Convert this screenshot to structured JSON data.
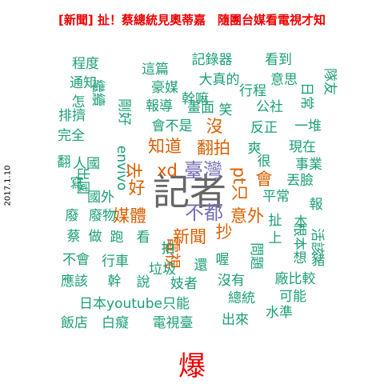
{
  "title": "[新聞] 扯！蔡總統見奧蒂嘉　隨團台媒看電視才知",
  "date_label": "2017.1.10",
  "bottom_word": "爆",
  "colors": {
    "title": "#ee0000",
    "freq_high": "#666666",
    "freq_mid": "#7570b3",
    "freq_low": "#d95f02",
    "freq_rare": "#1b9e77",
    "bottom": "#ee0000"
  },
  "chart_data": {
    "type": "wordcloud",
    "title": "[新聞] 扯！蔡總統見奧蒂嘉　隨團台媒看電視才知",
    "words": [
      {
        "text": "記者",
        "weight": 10,
        "tier": "high",
        "rot": 0
      },
      {
        "text": "臺灣",
        "weight": 5,
        "tier": "mid",
        "rot": 0
      },
      {
        "text": "不都",
        "weight": 5,
        "tier": "mid",
        "rot": 0
      },
      {
        "text": "翻拍",
        "weight": 4,
        "tier": "low",
        "rot": 0
      },
      {
        "text": "知道",
        "weight": 4,
        "tier": "low",
        "rot": 0
      },
      {
        "text": "新聞",
        "weight": 4,
        "tier": "low",
        "rot": 0
      },
      {
        "text": "媒體",
        "weight": 4,
        "tier": "low",
        "rot": 0
      },
      {
        "text": "意外",
        "weight": 4,
        "tier": "low",
        "rot": 0
      },
      {
        "text": "xd",
        "weight": 4,
        "tier": "low",
        "rot": 0
      },
      {
        "text": "沒",
        "weight": 4,
        "tier": "low",
        "rot": 0
      },
      {
        "text": "好",
        "weight": 4,
        "tier": "low",
        "rot": 0
      },
      {
        "text": "抄",
        "weight": 4,
        "tier": "low",
        "rot": 0
      },
      {
        "text": "去",
        "weight": 4,
        "tier": "low",
        "rot": 90
      },
      {
        "text": "會",
        "weight": 4,
        "tier": "low",
        "rot": 0
      },
      {
        "text": "pt只",
        "weight": 4,
        "tier": "low",
        "rot": 90
      },
      {
        "text": "電視",
        "weight": 3,
        "tier": "low",
        "rot": 90
      },
      {
        "text": "程度",
        "weight": 2,
        "tier": "rare",
        "rot": 0
      },
      {
        "text": "這篇",
        "weight": 2,
        "tier": "rare",
        "rot": 0
      },
      {
        "text": "記錄器",
        "weight": 2,
        "tier": "rare",
        "rot": 0
      },
      {
        "text": "看到",
        "weight": 2,
        "tier": "rare",
        "rot": 0
      },
      {
        "text": "通知",
        "weight": 2,
        "tier": "rare",
        "rot": 0
      },
      {
        "text": "豪媒",
        "weight": 2,
        "tier": "rare",
        "rot": 0
      },
      {
        "text": "大真的",
        "weight": 2,
        "tier": "rare",
        "rot": 0
      },
      {
        "text": "意思",
        "weight": 2,
        "tier": "rare",
        "rot": 0
      },
      {
        "text": "繼續",
        "weight": 2,
        "tier": "rare",
        "rot": 90
      },
      {
        "text": "隊友",
        "weight": 2,
        "tier": "rare",
        "rot": 90
      },
      {
        "text": "幹嘛",
        "weight": 2,
        "tier": "rare",
        "rot": 0
      },
      {
        "text": "行程",
        "weight": 2,
        "tier": "rare",
        "rot": 0
      },
      {
        "text": "日常",
        "weight": 2,
        "tier": "rare",
        "rot": 90
      },
      {
        "text": "怎",
        "weight": 2,
        "tier": "rare",
        "rot": 0
      },
      {
        "text": "報導",
        "weight": 2,
        "tier": "rare",
        "rot": 0
      },
      {
        "text": "畫面",
        "weight": 2,
        "tier": "rare",
        "rot": 0
      },
      {
        "text": "笑",
        "weight": 2,
        "tier": "rare",
        "rot": 0
      },
      {
        "text": "公社",
        "weight": 2,
        "tier": "rare",
        "rot": 0
      },
      {
        "text": "排擠",
        "weight": 2,
        "tier": "rare",
        "rot": 0
      },
      {
        "text": "剛好",
        "weight": 2,
        "tier": "rare",
        "rot": 90
      },
      {
        "text": "會不是",
        "weight": 2,
        "tier": "rare",
        "rot": 0
      },
      {
        "text": "反正",
        "weight": 2,
        "tier": "rare",
        "rot": 0
      },
      {
        "text": "一堆",
        "weight": 2,
        "tier": "rare",
        "rot": 0
      },
      {
        "text": "完全",
        "weight": 2,
        "tier": "rare",
        "rot": 0
      },
      {
        "text": "爽",
        "weight": 2,
        "tier": "rare",
        "rot": 0
      },
      {
        "text": "翻",
        "weight": 2,
        "tier": "rare",
        "rot": 0
      },
      {
        "text": "人國",
        "weight": 2,
        "tier": "rare",
        "rot": 0
      },
      {
        "text": "envivo",
        "weight": 2,
        "tier": "rare",
        "rot": 90
      },
      {
        "text": "很",
        "weight": 2,
        "tier": "rare",
        "rot": 0
      },
      {
        "text": "現在",
        "weight": 2,
        "tier": "rare",
        "rot": 0
      },
      {
        "text": "事業",
        "weight": 2,
        "tier": "rare",
        "rot": 0
      },
      {
        "text": "出國",
        "weight": 2,
        "tier": "rare",
        "rot": 90
      },
      {
        "text": "丟臉",
        "weight": 2,
        "tier": "rare",
        "rot": 0
      },
      {
        "text": "寫",
        "weight": 2,
        "tier": "rare",
        "rot": 0
      },
      {
        "text": "平常",
        "weight": 2,
        "tier": "rare",
        "rot": 0
      },
      {
        "text": "國外",
        "weight": 2,
        "tier": "rare",
        "rot": 0
      },
      {
        "text": "報",
        "weight": 2,
        "tier": "rare",
        "rot": 0
      },
      {
        "text": "廢",
        "weight": 2,
        "tier": "rare",
        "rot": 0
      },
      {
        "text": "廢物",
        "weight": 2,
        "tier": "rare",
        "rot": 0
      },
      {
        "text": "扯",
        "weight": 2,
        "tier": "rare",
        "rot": 0
      },
      {
        "text": "本",
        "weight": 2,
        "tier": "rare",
        "rot": 0
      },
      {
        "text": "蔡",
        "weight": 2,
        "tier": "rare",
        "rot": 0
      },
      {
        "text": "做",
        "weight": 2,
        "tier": "rare",
        "rot": 0
      },
      {
        "text": "跑",
        "weight": 2,
        "tier": "rare",
        "rot": 0
      },
      {
        "text": "看",
        "weight": 2,
        "tier": "rare",
        "rot": 0
      },
      {
        "text": "上",
        "weight": 2,
        "tier": "rare",
        "rot": 0
      },
      {
        "text": "根本",
        "weight": 2,
        "tier": "rare",
        "rot": 90
      },
      {
        "text": "活該",
        "weight": 2,
        "tier": "rare",
        "rot": 90
      },
      {
        "text": "拍",
        "weight": 2,
        "tier": "rare",
        "rot": 0
      },
      {
        "text": "問題",
        "weight": 2,
        "tier": "rare",
        "rot": 90
      },
      {
        "text": "想",
        "weight": 2,
        "tier": "rare",
        "rot": 0
      },
      {
        "text": "豬",
        "weight": 2,
        "tier": "rare",
        "rot": 0
      },
      {
        "text": "不會",
        "weight": 2,
        "tier": "rare",
        "rot": 0
      },
      {
        "text": "行車",
        "weight": 2,
        "tier": "rare",
        "rot": 0
      },
      {
        "text": "垃圾",
        "weight": 2,
        "tier": "rare",
        "rot": 0
      },
      {
        "text": "還",
        "weight": 2,
        "tier": "rare",
        "rot": 0
      },
      {
        "text": "喔",
        "weight": 2,
        "tier": "rare",
        "rot": 0
      },
      {
        "text": "應該",
        "weight": 2,
        "tier": "rare",
        "rot": 0
      },
      {
        "text": "幹",
        "weight": 2,
        "tier": "rare",
        "rot": 0
      },
      {
        "text": "說",
        "weight": 2,
        "tier": "rare",
        "rot": 0
      },
      {
        "text": "妓者",
        "weight": 2,
        "tier": "rare",
        "rot": 0
      },
      {
        "text": "沒有",
        "weight": 2,
        "tier": "rare",
        "rot": 0
      },
      {
        "text": "廠比較",
        "weight": 2,
        "tier": "rare",
        "rot": 0
      },
      {
        "text": "日本youtube只能",
        "weight": 2,
        "tier": "rare",
        "rot": 0
      },
      {
        "text": "總統",
        "weight": 2,
        "tier": "rare",
        "rot": 0
      },
      {
        "text": "可能",
        "weight": 2,
        "tier": "rare",
        "rot": 0
      },
      {
        "text": "水準",
        "weight": 2,
        "tier": "rare",
        "rot": 0
      },
      {
        "text": "飯店",
        "weight": 2,
        "tier": "rare",
        "rot": 0
      },
      {
        "text": "白癡",
        "weight": 2,
        "tier": "rare",
        "rot": 0
      },
      {
        "text": "電視臺",
        "weight": 2,
        "tier": "rare",
        "rot": 0
      },
      {
        "text": "出來",
        "weight": 2,
        "tier": "rare",
        "rot": 0
      }
    ]
  }
}
